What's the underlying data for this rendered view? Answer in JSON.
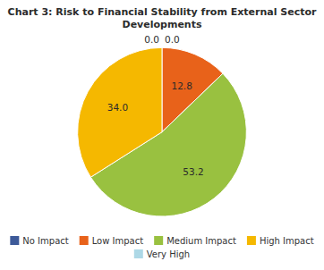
{
  "chart_data": {
    "type": "pie",
    "title": [
      "Chart 3: Risk to Financial Stability from External Sector",
      "Developments"
    ],
    "categories": [
      "No Impact",
      "Low Impact",
      "Medium Impact",
      "High Impact",
      "Very High"
    ],
    "values": [
      0.0,
      12.8,
      53.2,
      34.0,
      0.0
    ],
    "value_labels": [
      "0.0",
      "12.8",
      "53.2",
      "34.0",
      "0.0"
    ],
    "colors": [
      "#3d5a99",
      "#e8621a",
      "#99c140",
      "#f5b800",
      "#add8e6"
    ],
    "data_labels": true,
    "legend": "bottom"
  }
}
